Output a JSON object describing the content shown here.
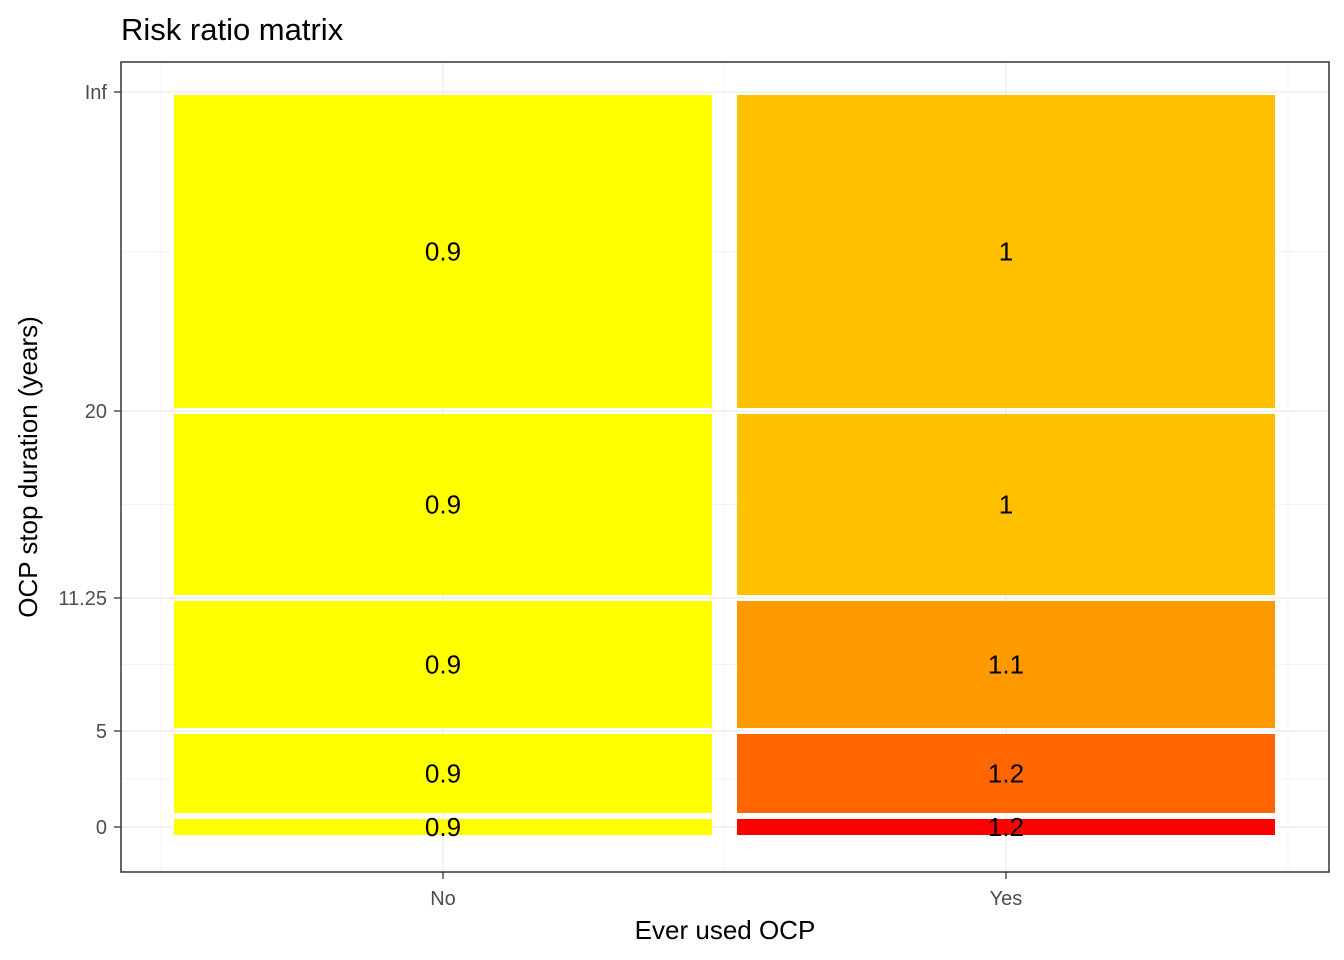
{
  "chart_data": {
    "type": "heatmap",
    "title": "Risk ratio matrix",
    "xlabel": "Ever used OCP",
    "ylabel": "OCP stop duration (years)",
    "x_categories": [
      "No",
      "Yes"
    ],
    "y_ticks": [
      "0",
      "5",
      "11.25",
      "20",
      "Inf"
    ],
    "grid": true,
    "cells": [
      {
        "x": "No",
        "y_from": "0",
        "y_to": "0",
        "value": 0.9,
        "label": "0.9",
        "color": "#FFFF00"
      },
      {
        "x": "No",
        "y_from": "0",
        "y_to": "5",
        "value": 0.9,
        "label": "0.9",
        "color": "#FFFF00"
      },
      {
        "x": "No",
        "y_from": "5",
        "y_to": "11.25",
        "value": 0.9,
        "label": "0.9",
        "color": "#FFFF00"
      },
      {
        "x": "No",
        "y_from": "11.25",
        "y_to": "20",
        "value": 0.9,
        "label": "0.9",
        "color": "#FFFF00"
      },
      {
        "x": "No",
        "y_from": "20",
        "y_to": "Inf",
        "value": 0.9,
        "label": "0.9",
        "color": "#FFFF00"
      },
      {
        "x": "Yes",
        "y_from": "0",
        "y_to": "0",
        "value": 1.2,
        "label": "1.2",
        "color": "#FF0000"
      },
      {
        "x": "Yes",
        "y_from": "0",
        "y_to": "5",
        "value": 1.2,
        "label": "1.2",
        "color": "#FF6600"
      },
      {
        "x": "Yes",
        "y_from": "5",
        "y_to": "11.25",
        "value": 1.1,
        "label": "1.1",
        "color": "#FF9900"
      },
      {
        "x": "Yes",
        "y_from": "11.25",
        "y_to": "20",
        "value": 1.0,
        "label": "1",
        "color": "#FFC000"
      },
      {
        "x": "Yes",
        "y_from": "20",
        "y_to": "Inf",
        "value": 1.0,
        "label": "1",
        "color": "#FFC000"
      }
    ]
  }
}
